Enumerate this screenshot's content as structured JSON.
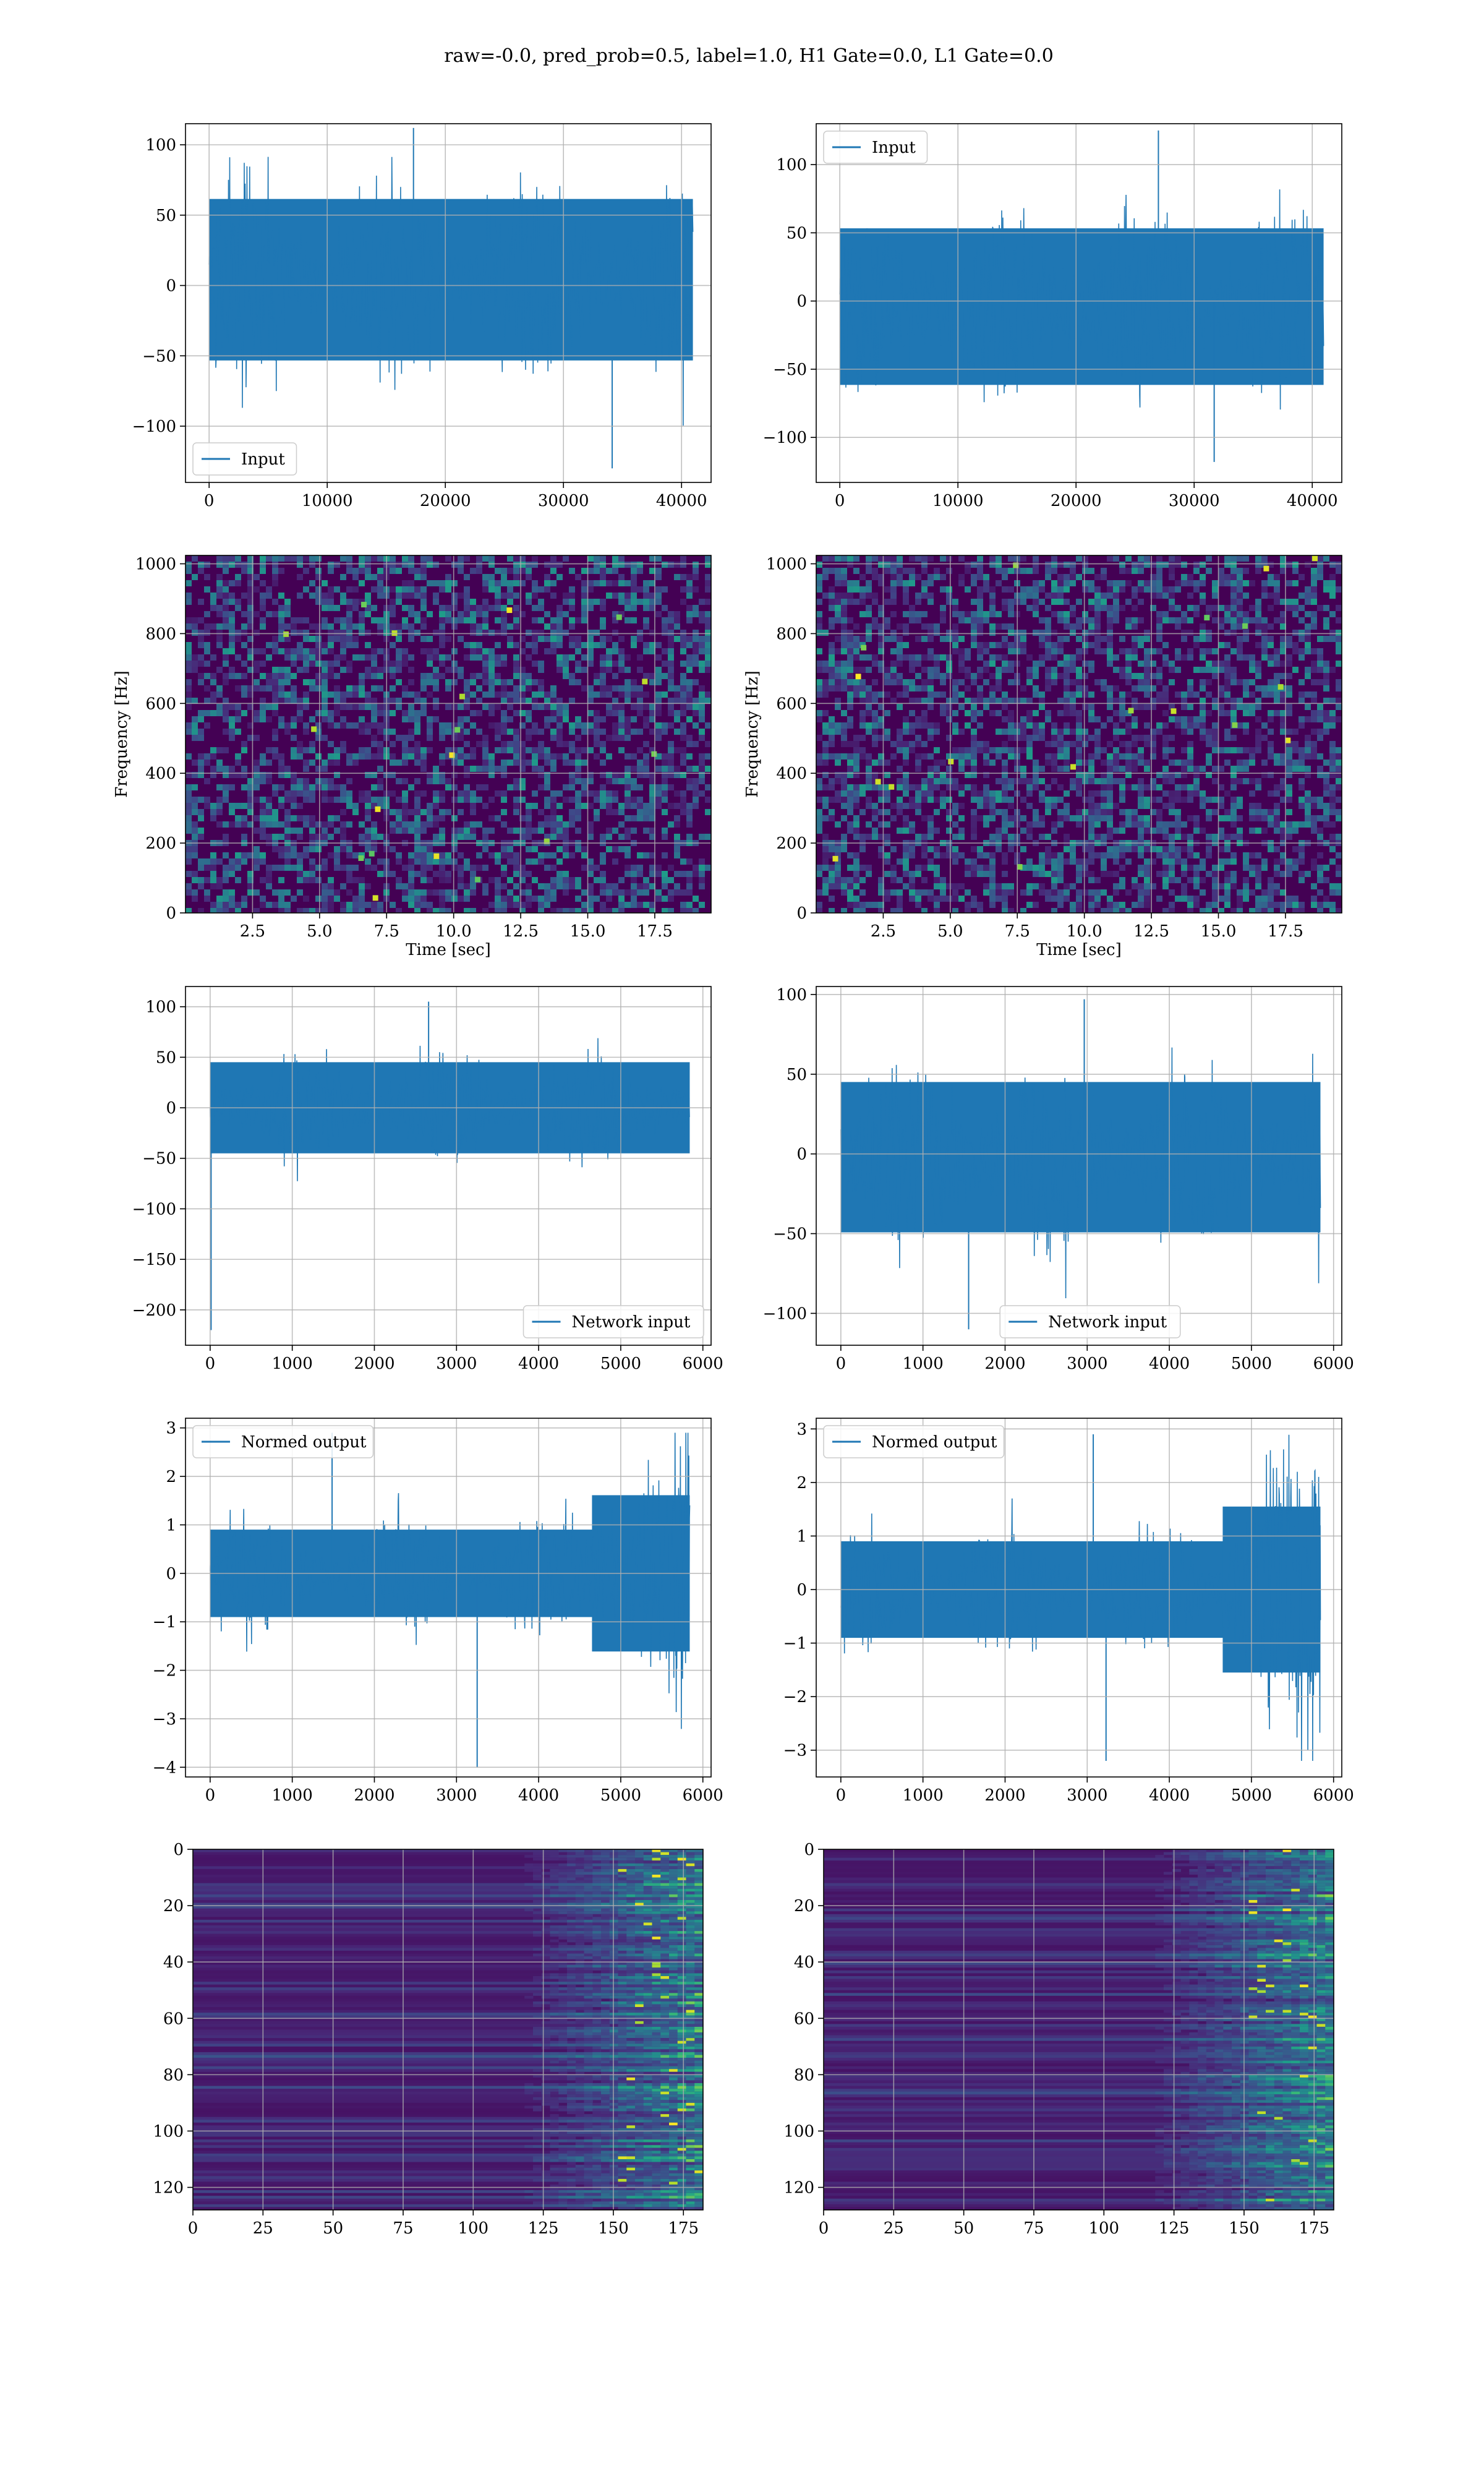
{
  "figure": {
    "suptitle": "raw=-0.0, pred_prob=0.5, label=1.0, H1 Gate=0.0, L1 Gate=0.0",
    "colors": {
      "line": "#1f77b4",
      "grid": "#b0b0b0",
      "viridis_dark": "#440154"
    }
  },
  "chart_data": [
    {
      "id": "input-left",
      "type": "line",
      "xlim": [
        -2000,
        42500
      ],
      "ylim": [
        -140,
        115
      ],
      "xticks": [
        0,
        10000,
        20000,
        30000,
        40000
      ],
      "yticks": [
        100,
        50,
        0,
        -50,
        -100
      ],
      "series": [
        {
          "name": "Input",
          "x_range": [
            0,
            40960
          ],
          "amplitude": {
            "typical": [
              -65,
              75
            ],
            "peaks": [
              -130,
              112
            ]
          }
        }
      ],
      "legend": "lower left",
      "grid": true,
      "xlabel": "",
      "ylabel": ""
    },
    {
      "id": "input-right",
      "type": "line",
      "xlim": [
        -2000,
        42500
      ],
      "ylim": [
        -133,
        130
      ],
      "xticks": [
        0,
        10000,
        20000,
        30000,
        40000
      ],
      "yticks": [
        100,
        50,
        0,
        -50,
        -100
      ],
      "series": [
        {
          "name": "Input",
          "x_range": [
            0,
            40960
          ],
          "amplitude": {
            "typical": [
              -75,
              65
            ],
            "peaks": [
              -118,
              125
            ]
          }
        }
      ],
      "legend": "upper left",
      "grid": true,
      "xlabel": "",
      "ylabel": ""
    },
    {
      "id": "spectrogram-left",
      "type": "heatmap",
      "colormap": "viridis",
      "xlim": [
        0,
        19.6
      ],
      "ylim": [
        0,
        1024
      ],
      "xticks": [
        "2.5",
        "5.0",
        "7.5",
        "10.0",
        "12.5",
        "15.0",
        "17.5"
      ],
      "yticks": [
        "0",
        "200",
        "400",
        "600",
        "800",
        "1000"
      ],
      "xlabel": "Time [sec]",
      "ylabel": "Frequency [Hz]",
      "grid": true
    },
    {
      "id": "spectrogram-right",
      "type": "heatmap",
      "colormap": "viridis",
      "xlim": [
        0,
        19.6
      ],
      "ylim": [
        0,
        1024
      ],
      "xticks": [
        "2.5",
        "5.0",
        "7.5",
        "10.0",
        "12.5",
        "15.0",
        "17.5"
      ],
      "yticks": [
        "0",
        "200",
        "400",
        "600",
        "800",
        "1000"
      ],
      "xlabel": "Time [sec]",
      "ylabel": "Frequency [Hz]",
      "grid": true
    },
    {
      "id": "network-input-left",
      "type": "line",
      "xlim": [
        -300,
        6100
      ],
      "ylim": [
        -235,
        120
      ],
      "xticks": [
        0,
        1000,
        2000,
        3000,
        4000,
        5000,
        6000
      ],
      "yticks": [
        100,
        50,
        0,
        -50,
        -100,
        -150,
        -200
      ],
      "series": [
        {
          "name": "Network input",
          "x_range": [
            0,
            5840
          ],
          "amplitude": {
            "typical": [
              -55,
              55
            ],
            "peaks": [
              -220,
              105
            ]
          }
        }
      ],
      "legend": "lower right",
      "grid": true,
      "xlabel": "",
      "ylabel": ""
    },
    {
      "id": "network-input-right",
      "type": "line",
      "xlim": [
        -300,
        6100
      ],
      "ylim": [
        -120,
        105
      ],
      "xticks": [
        0,
        1000,
        2000,
        3000,
        4000,
        5000,
        6000
      ],
      "yticks": [
        100,
        50,
        0,
        -50,
        -100
      ],
      "series": [
        {
          "name": "Network input",
          "x_range": [
            0,
            5840
          ],
          "amplitude": {
            "typical": [
              -60,
              55
            ],
            "peaks": [
              -110,
              97
            ]
          }
        }
      ],
      "legend": "lower center",
      "grid": true,
      "xlabel": "",
      "ylabel": ""
    },
    {
      "id": "normed-output-left",
      "type": "line",
      "xlim": [
        -300,
        6100
      ],
      "ylim": [
        -4.2,
        3.2
      ],
      "xticks": [
        0,
        1000,
        2000,
        3000,
        4000,
        5000,
        6000
      ],
      "yticks": [
        3,
        2,
        1,
        0,
        -1,
        -2,
        -3,
        -4
      ],
      "series": [
        {
          "name": "Normed output",
          "x_range": [
            0,
            5840
          ],
          "amplitude": {
            "typical": [
              -1.1,
              1.1
            ],
            "burst_start": 4650,
            "burst": [
              -2.6,
              2.6
            ],
            "peaks": [
              -4.0,
              2.9
            ]
          }
        }
      ],
      "legend": "upper left",
      "grid": true,
      "xlabel": "",
      "ylabel": ""
    },
    {
      "id": "normed-output-right",
      "type": "line",
      "xlim": [
        -300,
        6100
      ],
      "ylim": [
        -3.5,
        3.2
      ],
      "xticks": [
        0,
        1000,
        2000,
        3000,
        4000,
        5000,
        6000
      ],
      "yticks": [
        3,
        2,
        1,
        0,
        -1,
        -2,
        -3
      ],
      "series": [
        {
          "name": "Normed output",
          "x_range": [
            0,
            5840
          ],
          "amplitude": {
            "typical": [
              -1.1,
              1.1
            ],
            "burst_start": 4650,
            "burst": [
              -2.5,
              2.5
            ],
            "peaks": [
              -3.2,
              2.9
            ]
          }
        }
      ],
      "legend": "upper left",
      "grid": true,
      "xlabel": "",
      "ylabel": ""
    },
    {
      "id": "feature-map-left",
      "type": "heatmap",
      "colormap": "viridis",
      "xlim": [
        0,
        182
      ],
      "ylim": [
        128,
        0
      ],
      "xticks": [
        0,
        25,
        50,
        75,
        100,
        125,
        150,
        175
      ],
      "yticks": [
        0,
        20,
        40,
        60,
        80,
        100,
        120
      ],
      "grid": true,
      "xlabel": "",
      "ylabel": ""
    },
    {
      "id": "feature-map-right",
      "type": "heatmap",
      "colormap": "viridis",
      "xlim": [
        0,
        182
      ],
      "ylim": [
        128,
        0
      ],
      "xticks": [
        0,
        25,
        50,
        75,
        100,
        125,
        150,
        175
      ],
      "yticks": [
        0,
        20,
        40,
        60,
        80,
        100,
        120
      ],
      "grid": true,
      "xlabel": "",
      "ylabel": ""
    }
  ]
}
